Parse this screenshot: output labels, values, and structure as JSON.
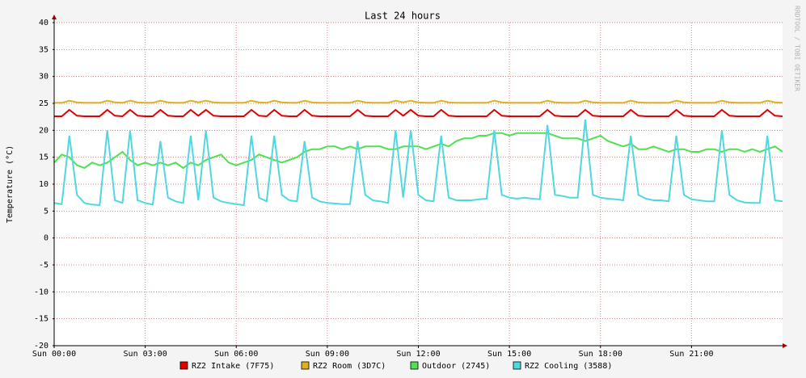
{
  "chart_data": {
    "type": "line",
    "title": "Last 24 hours",
    "y_label": "Temperature (°C)",
    "watermark": "RRDTOOL / TOBI OETIKER",
    "x": [
      0,
      0.25,
      0.5,
      0.75,
      1,
      1.25,
      1.5,
      1.75,
      2,
      2.25,
      2.5,
      2.75,
      3,
      3.25,
      3.5,
      3.75,
      4,
      4.25,
      4.5,
      4.75,
      5,
      5.25,
      5.5,
      5.75,
      6,
      6.25,
      6.5,
      6.75,
      7,
      7.25,
      7.5,
      7.75,
      8,
      8.25,
      8.5,
      8.75,
      9,
      9.25,
      9.5,
      9.75,
      10,
      10.25,
      10.5,
      10.75,
      11,
      11.25,
      11.5,
      11.75,
      12,
      12.25,
      12.5,
      12.75,
      13,
      13.25,
      13.5,
      13.75,
      14,
      14.25,
      14.5,
      14.75,
      15,
      15.25,
      15.5,
      15.75,
      16,
      16.25,
      16.5,
      16.75,
      17,
      17.25,
      17.5,
      17.75,
      18,
      18.25,
      18.5,
      18.75,
      19,
      19.25,
      19.5,
      19.75,
      20,
      20.25,
      20.5,
      20.75,
      21,
      21.25,
      21.5,
      21.75,
      22,
      22.25,
      22.5,
      22.75,
      23,
      23.25,
      23.5,
      23.75,
      24
    ],
    "xlim": [
      0,
      24
    ],
    "xticks": [
      {
        "value": 0,
        "label": "Sun 00:00"
      },
      {
        "value": 3,
        "label": "Sun 03:00"
      },
      {
        "value": 6,
        "label": "Sun 06:00"
      },
      {
        "value": 9,
        "label": "Sun 09:00"
      },
      {
        "value": 12,
        "label": "Sun 12:00"
      },
      {
        "value": 15,
        "label": "Sun 15:00"
      },
      {
        "value": 18,
        "label": "Sun 18:00"
      },
      {
        "value": 21,
        "label": "Sun 21:00"
      }
    ],
    "ylim": [
      -20,
      40
    ],
    "yticks": [
      -20,
      -15,
      -10,
      -5,
      0,
      5,
      10,
      15,
      20,
      25,
      30,
      35,
      40
    ],
    "grid": true,
    "series": [
      {
        "name": "RZ2 Intake (7F75)",
        "color": "#e00000",
        "values": [
          22.6,
          22.6,
          23.8,
          22.7,
          22.6,
          22.6,
          22.6,
          23.8,
          22.7,
          22.6,
          23.8,
          22.7,
          22.6,
          22.6,
          23.8,
          22.7,
          22.6,
          22.6,
          23.8,
          22.7,
          23.8,
          22.7,
          22.6,
          22.6,
          22.6,
          22.6,
          23.8,
          22.7,
          22.6,
          23.8,
          22.7,
          22.6,
          22.6,
          23.8,
          22.7,
          22.6,
          22.6,
          22.6,
          22.6,
          22.6,
          23.8,
          22.7,
          22.6,
          22.6,
          22.6,
          23.8,
          22.7,
          23.8,
          22.7,
          22.6,
          22.6,
          23.8,
          22.7,
          22.6,
          22.6,
          22.6,
          22.6,
          22.6,
          23.8,
          22.7,
          22.6,
          22.6,
          22.6,
          22.6,
          22.6,
          23.8,
          22.7,
          22.6,
          22.6,
          22.6,
          23.8,
          22.7,
          22.6,
          22.6,
          22.6,
          22.6,
          23.8,
          22.7,
          22.6,
          22.6,
          22.6,
          22.6,
          23.8,
          22.7,
          22.6,
          22.6,
          22.6,
          22.6,
          23.8,
          22.7,
          22.6,
          22.6,
          22.6,
          22.6,
          23.8,
          22.7,
          22.6
        ]
      },
      {
        "name": "RZ2 Room (3D7C)",
        "color": "#e0b020",
        "values": [
          25.1,
          25.1,
          25.5,
          25.2,
          25.1,
          25.1,
          25.1,
          25.5,
          25.2,
          25.1,
          25.5,
          25.2,
          25.1,
          25.1,
          25.5,
          25.2,
          25.1,
          25.1,
          25.5,
          25.2,
          25.5,
          25.2,
          25.1,
          25.1,
          25.1,
          25.1,
          25.5,
          25.2,
          25.1,
          25.5,
          25.2,
          25.1,
          25.1,
          25.5,
          25.2,
          25.1,
          25.1,
          25.1,
          25.1,
          25.1,
          25.5,
          25.2,
          25.1,
          25.1,
          25.1,
          25.5,
          25.2,
          25.5,
          25.2,
          25.1,
          25.1,
          25.5,
          25.2,
          25.1,
          25.1,
          25.1,
          25.1,
          25.1,
          25.5,
          25.2,
          25.1,
          25.1,
          25.1,
          25.1,
          25.1,
          25.5,
          25.2,
          25.1,
          25.1,
          25.1,
          25.5,
          25.2,
          25.1,
          25.1,
          25.1,
          25.1,
          25.5,
          25.2,
          25.1,
          25.1,
          25.1,
          25.1,
          25.5,
          25.2,
          25.1,
          25.1,
          25.1,
          25.1,
          25.5,
          25.2,
          25.1,
          25.1,
          25.1,
          25.1,
          25.5,
          25.2,
          25.1
        ]
      },
      {
        "name": "Outdoor (2745)",
        "color": "#50e050",
        "values": [
          14,
          15.5,
          15,
          13.5,
          13,
          14,
          13.5,
          14,
          15,
          16,
          14.5,
          13.5,
          14,
          13.5,
          14,
          13.5,
          14,
          13,
          14,
          13.5,
          14.5,
          15,
          15.5,
          14,
          13.5,
          14,
          14.5,
          15.5,
          15,
          14.5,
          14,
          14.5,
          15,
          16,
          16.5,
          16.5,
          17,
          17,
          16.5,
          17,
          16.5,
          17,
          17,
          17,
          16.5,
          16.5,
          17,
          17,
          17,
          16.5,
          17,
          17.5,
          17,
          18,
          18.5,
          18.5,
          19,
          19,
          19.5,
          19.5,
          19,
          19.5,
          19.5,
          19.5,
          19.5,
          19.5,
          19,
          18.5,
          18.5,
          18.5,
          18,
          18.5,
          19,
          18,
          17.5,
          17,
          17.5,
          16.5,
          16.5,
          17,
          16.5,
          16,
          16.5,
          16.5,
          16,
          16,
          16.5,
          16.5,
          16,
          16.5,
          16.5,
          16,
          16.5,
          16,
          16.5,
          17,
          16
        ]
      },
      {
        "name": "RZ2 Cooling (3588)",
        "color": "#50d8e0",
        "values": [
          6.5,
          6.3,
          19,
          8,
          6.5,
          6.2,
          6.1,
          20,
          7,
          6.5,
          20,
          7,
          6.5,
          6.2,
          18,
          7.5,
          6.8,
          6.5,
          19,
          7,
          20,
          7.5,
          6.8,
          6.5,
          6.3,
          6.1,
          19,
          7.5,
          6.8,
          19,
          8,
          7,
          6.8,
          18,
          7.5,
          6.8,
          6.5,
          6.4,
          6.3,
          6.3,
          18,
          8,
          7,
          6.8,
          6.5,
          20,
          7.5,
          20,
          8,
          7,
          6.8,
          19,
          7.5,
          7,
          7,
          7,
          7.2,
          7.3,
          20,
          8,
          7.5,
          7.3,
          7.5,
          7.3,
          7.2,
          21,
          8,
          7.8,
          7.5,
          7.5,
          22,
          8,
          7.5,
          7.3,
          7.2,
          7,
          19,
          8,
          7.3,
          7,
          7,
          6.8,
          19,
          8,
          7.2,
          7,
          6.8,
          6.8,
          20,
          8,
          7,
          6.6,
          6.5,
          6.5,
          19,
          7,
          6.8
        ]
      }
    ]
  }
}
